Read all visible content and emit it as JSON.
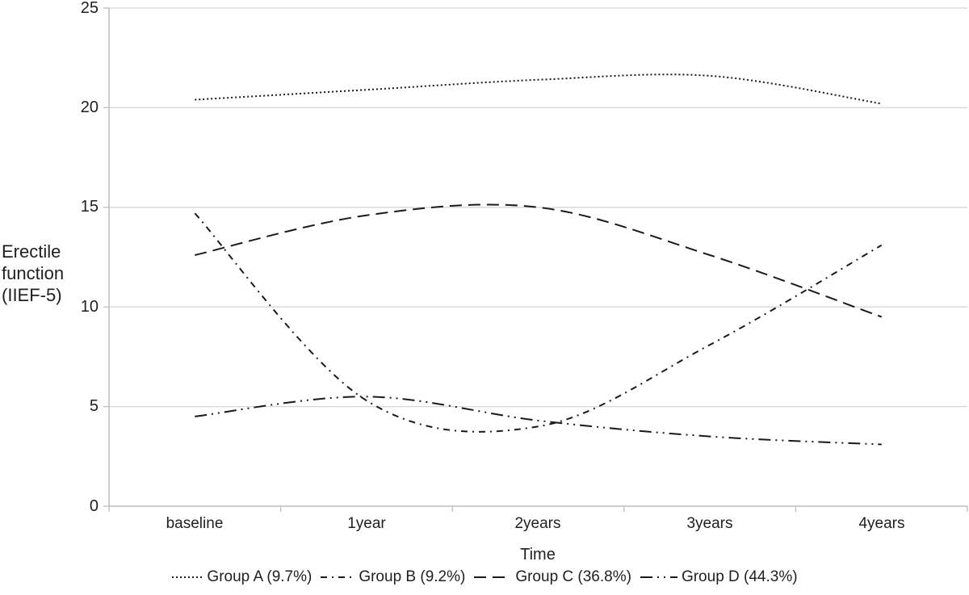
{
  "chart_data": {
    "type": "line",
    "title": "",
    "xlabel": "Time",
    "ylabel": "Erectile function (IIEF-5)",
    "ylabel_lines": [
      "Erectile",
      "function",
      "(IIEF-5)"
    ],
    "categories": [
      "baseline",
      "1year",
      "2years",
      "3years",
      "4years"
    ],
    "y_tick_labels": [
      25,
      20,
      15,
      10,
      5,
      0
    ],
    "ylim": [
      0,
      25
    ],
    "grid": "horizontal gridlines at 5,10,15,20,25",
    "legend_position": "bottom-center",
    "colors": {
      "line": "#1a1a1a",
      "gridline": "#d6d6d6",
      "axis": "#bdbdbd",
      "text": "#1f1f1f",
      "background": "#ffffff"
    },
    "series": [
      {
        "name": "Group A (9.7%)",
        "dash": "dotted",
        "values": [
          20.4,
          20.9,
          21.4,
          21.6,
          20.2
        ]
      },
      {
        "name": "Group B (9.2%)",
        "dash": "dash-dot",
        "values": [
          14.7,
          5.3,
          4.0,
          8.1,
          13.1
        ]
      },
      {
        "name": "Group C (36.8%)",
        "dash": "dashed",
        "values": [
          12.6,
          14.6,
          15.0,
          12.6,
          9.5
        ]
      },
      {
        "name": "Group D (44.3%)",
        "dash": "dash-dot-dot",
        "values": [
          4.5,
          5.5,
          4.3,
          3.5,
          3.1
        ]
      }
    ]
  }
}
